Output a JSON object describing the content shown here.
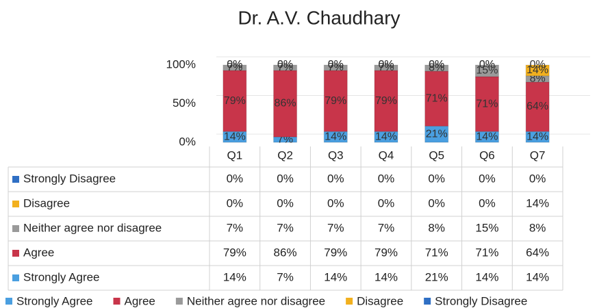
{
  "chart_data": {
    "type": "bar",
    "stacked": true,
    "title": "Dr. A.V.  Chaudhary",
    "categories": [
      "Q1",
      "Q2",
      "Q3",
      "Q4",
      "Q5",
      "Q6",
      "Q7"
    ],
    "ylim": [
      0,
      100
    ],
    "yticks": [
      {
        "value": 0,
        "label": "0%"
      },
      {
        "value": 50,
        "label": "50%"
      },
      {
        "value": 100,
        "label": "100%"
      }
    ],
    "legend": "bottom",
    "series": [
      {
        "name": "Strongly Agree",
        "color": "#4a9fe0",
        "values": [
          14,
          7,
          14,
          14,
          21,
          14,
          14
        ],
        "value_labels": [
          "14%",
          "7%",
          "14%",
          "14%",
          "21%",
          "14%",
          "14%"
        ]
      },
      {
        "name": "Agree",
        "color": "#c8354a",
        "values": [
          79,
          86,
          79,
          79,
          71,
          71,
          64
        ],
        "value_labels": [
          "79%",
          "86%",
          "79%",
          "79%",
          "71%",
          "71%",
          "64%"
        ]
      },
      {
        "name": "Neither agree nor disagree",
        "color": "#9a9a9a",
        "values": [
          7,
          7,
          7,
          7,
          8,
          15,
          8
        ],
        "value_labels": [
          "7%",
          "7%",
          "7%",
          "7%",
          "8%",
          "15%",
          "8%"
        ]
      },
      {
        "name": "Disagree",
        "color": "#f2b01e",
        "values": [
          0,
          0,
          0,
          0,
          0,
          0,
          14
        ],
        "value_labels": [
          "0%",
          "0%",
          "0%",
          "0%",
          "0%",
          "0%",
          "14%"
        ]
      },
      {
        "name": "Strongly Disagree",
        "color": "#2f6fc4",
        "values": [
          0,
          0,
          0,
          0,
          0,
          0,
          0
        ],
        "value_labels": [
          "0%",
          "0%",
          "0%",
          "0%",
          "0%",
          "0%",
          "0%"
        ]
      }
    ]
  }
}
